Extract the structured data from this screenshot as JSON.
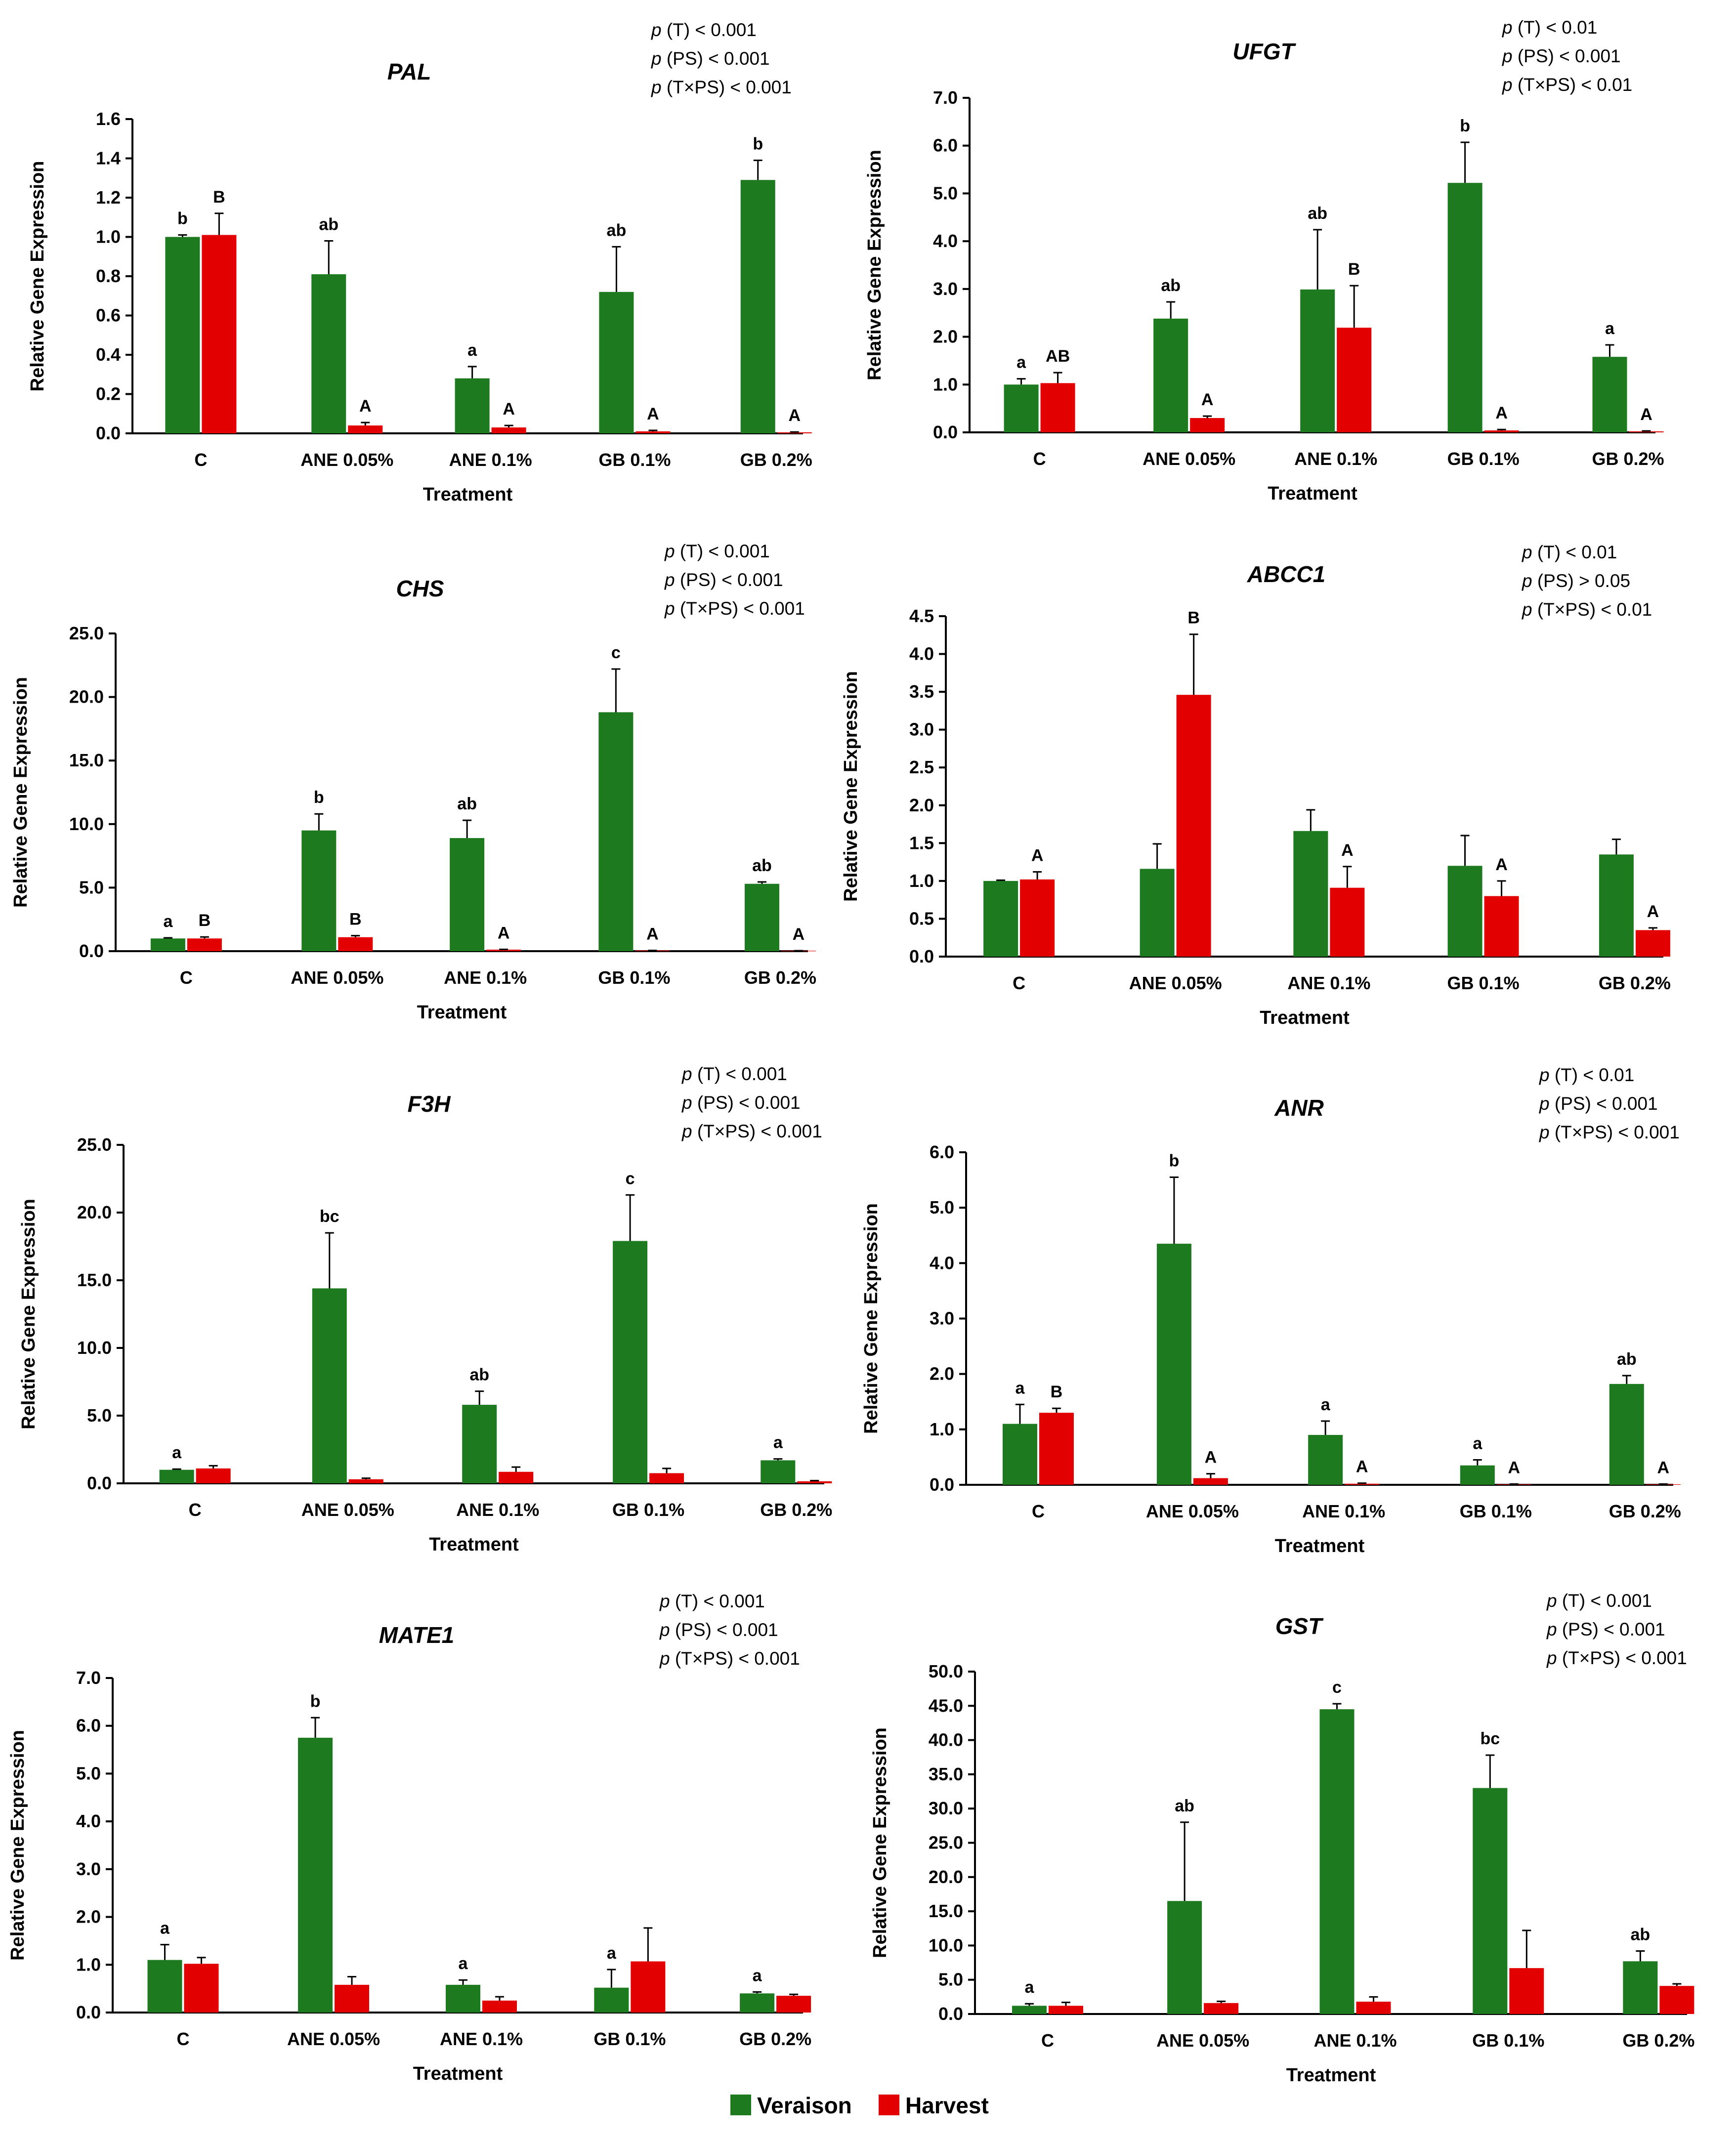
{
  "chart_data": [
    {
      "type": "bar",
      "title": "PAL",
      "xlabel": "Treatment",
      "ylabel": "Relative Gene Expression",
      "ylim": [
        0,
        1.6
      ],
      "yticks": [
        "0.0",
        "0.2",
        "0.4",
        "0.6",
        "0.8",
        "1.0",
        "1.2",
        "1.4",
        "1.6"
      ],
      "categories": [
        "C",
        "ANE 0.05%",
        "ANE 0.1%",
        "GB 0.1%",
        "GB 0.2%"
      ],
      "series": [
        {
          "name": "Veraison",
          "values": [
            1.0,
            0.81,
            0.28,
            0.72,
            1.29
          ],
          "errors": [
            0.01,
            0.17,
            0.06,
            0.23,
            0.1
          ],
          "letters": [
            "b",
            "ab",
            "a",
            "ab",
            "b"
          ]
        },
        {
          "name": "Harvest",
          "values": [
            1.01,
            0.04,
            0.03,
            0.01,
            0.005
          ],
          "errors": [
            0.11,
            0.015,
            0.01,
            0.005,
            0.002
          ],
          "letters": [
            "B",
            "A",
            "A",
            "A",
            "A"
          ]
        }
      ],
      "stats": [
        {
          "p": "p",
          "rest": " (T) < 0.001"
        },
        {
          "p": "p",
          "rest": " (PS) < 0.001"
        },
        {
          "p": "p",
          "rest": " (T×PS) < 0.001"
        }
      ]
    },
    {
      "type": "bar",
      "title": "UFGT",
      "xlabel": "Treatment",
      "ylabel": "Relative Gene Expression",
      "ylim": [
        0,
        7.0
      ],
      "yticks": [
        "0.0",
        "1.0",
        "2.0",
        "3.0",
        "4.0",
        "5.0",
        "6.0",
        "7.0"
      ],
      "categories": [
        "C",
        "ANE 0.05%",
        "ANE 0.1%",
        "GB 0.1%",
        "GB 0.2%"
      ],
      "series": [
        {
          "name": "Veraison",
          "values": [
            1.0,
            2.38,
            2.99,
            5.22,
            1.58
          ],
          "errors": [
            0.12,
            0.35,
            1.25,
            0.85,
            0.25
          ],
          "letters": [
            "a",
            "ab",
            "ab",
            "b",
            "a"
          ]
        },
        {
          "name": "Harvest",
          "values": [
            1.03,
            0.3,
            2.19,
            0.04,
            0.02
          ],
          "errors": [
            0.22,
            0.04,
            0.88,
            0.02,
            0.01
          ],
          "letters": [
            "AB",
            "A",
            "B",
            "A",
            "A"
          ]
        }
      ],
      "stats": [
        {
          "p": "p",
          "rest": " (T) < 0.01"
        },
        {
          "p": "p",
          "rest": " (PS) < 0.001"
        },
        {
          "p": "p",
          "rest": " (T×PS) < 0.01"
        }
      ]
    },
    {
      "type": "bar",
      "title": "CHS",
      "xlabel": "Treatment",
      "ylabel": "Relative Gene Expression",
      "ylim": [
        0,
        25.0
      ],
      "yticks": [
        "0.0",
        "5.0",
        "10.0",
        "15.0",
        "20.0",
        "25.0"
      ],
      "categories": [
        "C",
        "ANE 0.05%",
        "ANE 0.1%",
        "GB 0.1%",
        "GB 0.2%"
      ],
      "series": [
        {
          "name": "Veraison",
          "values": [
            1.0,
            9.5,
            8.9,
            18.8,
            5.3
          ],
          "errors": [
            0.05,
            1.3,
            1.4,
            3.4,
            0.15
          ],
          "letters": [
            "a",
            "b",
            "ab",
            "c",
            "ab"
          ]
        },
        {
          "name": "Harvest",
          "values": [
            1.0,
            1.1,
            0.12,
            0.05,
            0.03
          ],
          "errors": [
            0.12,
            0.12,
            0.02,
            0.01,
            0.01
          ],
          "letters": [
            "B",
            "B",
            "A",
            "A",
            "A"
          ]
        }
      ],
      "stats": [
        {
          "p": "p",
          "rest": " (T) < 0.001"
        },
        {
          "p": "p",
          "rest": " (PS) < 0.001"
        },
        {
          "p": "p",
          "rest": " (T×PS) < 0.001"
        }
      ]
    },
    {
      "type": "bar",
      "title": "ABCC1",
      "xlabel": "Treatment",
      "ylabel": "Relative Gene Expression",
      "ylim": [
        0,
        4.5
      ],
      "yticks": [
        "0.0",
        "0.5",
        "1.0",
        "1.5",
        "2.0",
        "2.5",
        "3.0",
        "3.5",
        "4.0",
        "4.5"
      ],
      "categories": [
        "C",
        "ANE 0.05%",
        "ANE 0.1%",
        "GB 0.1%",
        "GB 0.2%"
      ],
      "series": [
        {
          "name": "Veraison",
          "values": [
            1.0,
            1.16,
            1.66,
            1.2,
            1.35
          ],
          "errors": [
            0.01,
            0.33,
            0.28,
            0.4,
            0.2
          ],
          "letters": [
            "",
            "",
            "",
            "",
            ""
          ]
        },
        {
          "name": "Harvest",
          "values": [
            1.02,
            3.46,
            0.91,
            0.8,
            0.35
          ],
          "errors": [
            0.1,
            0.8,
            0.28,
            0.2,
            0.03
          ],
          "letters": [
            "A",
            "B",
            "A",
            "A",
            "A"
          ]
        }
      ],
      "stats": [
        {
          "p": "p",
          "rest": " (T) < 0.01"
        },
        {
          "p": "p",
          "rest": " (PS) > 0.05"
        },
        {
          "p": "p",
          "rest": " (T×PS) < 0.01"
        }
      ]
    },
    {
      "type": "bar",
      "title": "F3H",
      "xlabel": "Treatment",
      "ylabel": "Relative Gene Expression",
      "ylim": [
        0,
        25.0
      ],
      "yticks": [
        "0.0",
        "5.0",
        "10.0",
        "15.0",
        "20.0",
        "25.0"
      ],
      "categories": [
        "C",
        "ANE 0.05%",
        "ANE 0.1%",
        "GB 0.1%",
        "GB 0.2%"
      ],
      "series": [
        {
          "name": "Veraison",
          "values": [
            1.0,
            14.4,
            5.8,
            17.9,
            1.7
          ],
          "errors": [
            0.05,
            4.1,
            1.0,
            3.4,
            0.1
          ],
          "letters": [
            "a",
            "bc",
            "ab",
            "c",
            "a"
          ]
        },
        {
          "name": "Harvest",
          "values": [
            1.1,
            0.3,
            0.85,
            0.75,
            0.15
          ],
          "errors": [
            0.2,
            0.08,
            0.35,
            0.35,
            0.05
          ],
          "letters": [
            "",
            "",
            "",
            "",
            ""
          ]
        }
      ],
      "stats": [
        {
          "p": "p",
          "rest": " (T) < 0.001"
        },
        {
          "p": "p",
          "rest": " (PS) < 0.001"
        },
        {
          "p": "p",
          "rest": " (T×PS) < 0.001"
        }
      ]
    },
    {
      "type": "bar",
      "title": "ANR",
      "xlabel": "Treatment",
      "ylabel": "Relative Gene Expression",
      "ylim": [
        0,
        6.0
      ],
      "yticks": [
        "0.0",
        "1.0",
        "2.0",
        "3.0",
        "4.0",
        "5.0",
        "6.0"
      ],
      "categories": [
        "C",
        "ANE 0.05%",
        "ANE 0.1%",
        "GB 0.1%",
        "GB 0.2%"
      ],
      "series": [
        {
          "name": "Veraison",
          "values": [
            1.1,
            4.35,
            0.9,
            0.35,
            1.82
          ],
          "errors": [
            0.35,
            1.2,
            0.25,
            0.1,
            0.15
          ],
          "letters": [
            "a",
            "b",
            "a",
            "a",
            "ab"
          ]
        },
        {
          "name": "Harvest",
          "values": [
            1.3,
            0.12,
            0.02,
            0.01,
            0.01
          ],
          "errors": [
            0.08,
            0.08,
            0.01,
            0.005,
            0.005
          ],
          "letters": [
            "B",
            "A",
            "A",
            "A",
            "A"
          ]
        }
      ],
      "stats": [
        {
          "p": "p",
          "rest": " (T) < 0.01"
        },
        {
          "p": "p",
          "rest": " (PS) < 0.001"
        },
        {
          "p": "p",
          "rest": " (T×PS) < 0.001"
        }
      ]
    },
    {
      "type": "bar",
      "title": "MATE1",
      "xlabel": "Treatment",
      "ylabel": "Relative Gene Expression",
      "ylim": [
        0,
        7.0
      ],
      "yticks": [
        "0.0",
        "1.0",
        "2.0",
        "3.0",
        "4.0",
        "5.0",
        "6.0",
        "7.0"
      ],
      "categories": [
        "C",
        "ANE 0.05%",
        "ANE 0.1%",
        "GB 0.1%",
        "GB 0.2%"
      ],
      "series": [
        {
          "name": "Veraison",
          "values": [
            1.1,
            5.75,
            0.58,
            0.52,
            0.4
          ],
          "errors": [
            0.32,
            0.42,
            0.1,
            0.38,
            0.03
          ],
          "letters": [
            "a",
            "b",
            "a",
            "a",
            "a"
          ]
        },
        {
          "name": "Harvest",
          "values": [
            1.02,
            0.58,
            0.25,
            1.07,
            0.35
          ],
          "errors": [
            0.13,
            0.17,
            0.08,
            0.7,
            0.03
          ],
          "letters": [
            "",
            "",
            "",
            "",
            ""
          ]
        }
      ],
      "stats": [
        {
          "p": "p",
          "rest": " (T) < 0.001"
        },
        {
          "p": "p",
          "rest": " (PS) < 0.001"
        },
        {
          "p": "p",
          "rest": " (T×PS) < 0.001"
        }
      ]
    },
    {
      "type": "bar",
      "title": "GST",
      "xlabel": "Treatment",
      "ylabel": "Relative Gene Expression",
      "ylim": [
        0,
        50.0
      ],
      "yticks": [
        "0.0",
        "5.0",
        "10.0",
        "15.0",
        "20.0",
        "25.0",
        "30.0",
        "35.0",
        "40.0",
        "45.0",
        "50.0"
      ],
      "categories": [
        "C",
        "ANE 0.05%",
        "ANE 0.1%",
        "GB 0.1%",
        "GB 0.2%"
      ],
      "series": [
        {
          "name": "Veraison",
          "values": [
            1.2,
            16.5,
            44.5,
            33.0,
            7.7
          ],
          "errors": [
            0.3,
            11.5,
            0.8,
            4.8,
            1.5
          ],
          "letters": [
            "a",
            "ab",
            "c",
            "bc",
            "ab"
          ]
        },
        {
          "name": "Harvest",
          "values": [
            1.2,
            1.6,
            1.8,
            6.7,
            4.1
          ],
          "errors": [
            0.5,
            0.25,
            0.7,
            5.5,
            0.3
          ],
          "letters": [
            "",
            "",
            "",
            "",
            ""
          ]
        }
      ],
      "stats": [
        {
          "p": "p",
          "rest": " (T) < 0.001"
        },
        {
          "p": "p",
          "rest": " (PS) < 0.001"
        },
        {
          "p": "p",
          "rest": " (T×PS) < 0.001"
        }
      ]
    }
  ],
  "legend": {
    "items": [
      {
        "label": "Veraison",
        "color": "#1e7a1e"
      },
      {
        "label": "Harvest",
        "color": "#e30000"
      }
    ]
  },
  "colors": {
    "veraison": "#1e7a1e",
    "harvest": "#e30000",
    "axis": "#000000"
  }
}
